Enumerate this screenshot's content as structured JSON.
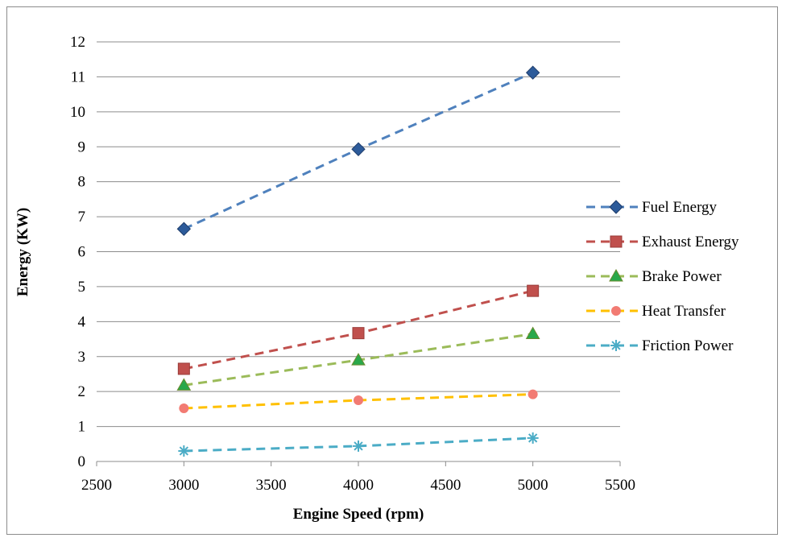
{
  "chart_data": {
    "type": "line",
    "xlabel": "Engine Speed (rpm)",
    "ylabel": "Energy (KW)",
    "xlim": [
      2500,
      5500
    ],
    "ylim": [
      0,
      12
    ],
    "xticks": [
      "2500",
      "3000",
      "3500",
      "4000",
      "4500",
      "5000",
      "5500"
    ],
    "yticks": [
      "0",
      "1",
      "2",
      "3",
      "4",
      "5",
      "6",
      "7",
      "8",
      "9",
      "10",
      "11",
      "12"
    ],
    "grid": "horizontal",
    "legend": "right",
    "x": [
      3000,
      4000,
      5000
    ],
    "series": [
      {
        "name": "Fuel Energy",
        "values": [
          6.65,
          8.93,
          11.12
        ],
        "color": "#4f81bd",
        "markerColor": "#2d5b9a",
        "marker": "diamond"
      },
      {
        "name": "Exhaust Energy",
        "values": [
          2.65,
          3.67,
          4.88
        ],
        "color": "#c0504d",
        "markerColor": "#c0504d",
        "marker": "square"
      },
      {
        "name": "Brake Power",
        "values": [
          2.18,
          2.9,
          3.65
        ],
        "color": "#9bbb59",
        "markerColor": "#2aa84a",
        "marker": "triangle"
      },
      {
        "name": "Heat Transfer",
        "values": [
          1.52,
          1.75,
          1.92
        ],
        "color": "#ffc000",
        "markerColor": "#f27b73",
        "marker": "circle"
      },
      {
        "name": "Friction Power",
        "values": [
          0.3,
          0.44,
          0.67
        ],
        "color": "#4bacc6",
        "markerColor": "#4bacc6",
        "marker": "star"
      }
    ]
  }
}
